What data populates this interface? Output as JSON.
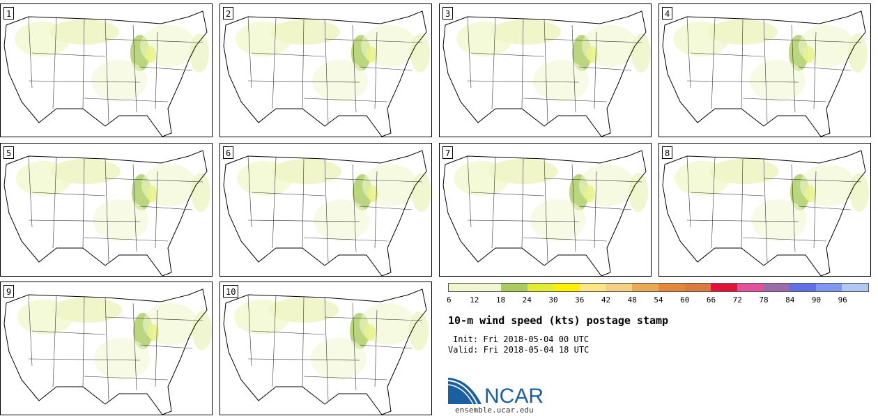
{
  "panels": [
    {
      "label": "1"
    },
    {
      "label": "2"
    },
    {
      "label": "3"
    },
    {
      "label": "4"
    },
    {
      "label": "5"
    },
    {
      "label": "6"
    },
    {
      "label": "7"
    },
    {
      "label": "8"
    },
    {
      "label": "9"
    },
    {
      "label": "10"
    }
  ],
  "colorbar": {
    "ticks": [
      "6",
      "12",
      "18",
      "24",
      "30",
      "36",
      "42",
      "48",
      "54",
      "60",
      "66",
      "72",
      "78",
      "84",
      "90",
      "96"
    ],
    "colors": [
      "#f2f6d0",
      "#f2f6d0",
      "#a9cc60",
      "#e2ec30",
      "#fff000",
      "#fbe77f",
      "#f6d080",
      "#ecaa50",
      "#e58838",
      "#dd7a3c",
      "#e4103a",
      "#e4509a",
      "#9a6aaa",
      "#6070e8",
      "#7f96f4",
      "#b0c8f8"
    ]
  },
  "title": "10-m wind speed (kts) postage stamp",
  "init": "Init: Fri 2018-05-04 00 UTC",
  "valid": "Valid: Fri 2018-05-04 18 UTC",
  "logo": {
    "text": "NCAR",
    "url": "ensemble.ucar.edu",
    "color": "#1a5fa0"
  }
}
